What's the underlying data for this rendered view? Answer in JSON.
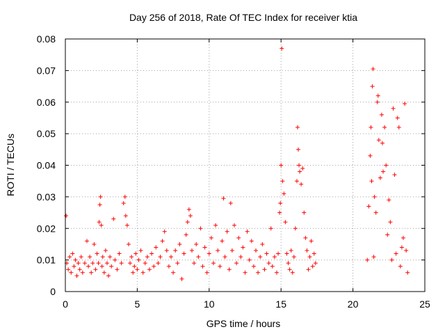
{
  "chart_data": {
    "type": "scatter",
    "title": "Day 256 of 2018, Rate Of TEC Index for receiver ktia",
    "xlabel": "GPS time / hours",
    "ylabel": "ROTI / TECUs",
    "xlim": [
      0,
      25
    ],
    "ylim": [
      0,
      0.08
    ],
    "x_ticks": [
      0,
      5,
      10,
      15,
      20,
      25
    ],
    "y_ticks": [
      0,
      0.01,
      0.02,
      0.03,
      0.04,
      0.05,
      0.06,
      0.07,
      0.08
    ],
    "x_tick_labels": [
      "0",
      "5",
      "10",
      "15",
      "20",
      "25"
    ],
    "y_tick_labels": [
      "0",
      "0.01",
      "0.02",
      "0.03",
      "0.04",
      "0.05",
      "0.06",
      "0.07",
      "0.08"
    ],
    "grid": true,
    "marker": "plus",
    "color": "#ff0000",
    "series": [
      {
        "name": "ROTI",
        "points": [
          [
            0.05,
            0.024
          ],
          [
            0.1,
            0.009
          ],
          [
            0.2,
            0.007
          ],
          [
            0.3,
            0.011
          ],
          [
            0.4,
            0.006
          ],
          [
            0.5,
            0.012
          ],
          [
            0.6,
            0.008
          ],
          [
            0.7,
            0.01
          ],
          [
            0.8,
            0.005
          ],
          [
            0.9,
            0.009
          ],
          [
            1.0,
            0.007
          ],
          [
            1.1,
            0.011
          ],
          [
            1.2,
            0.006
          ],
          [
            1.35,
            0.009
          ],
          [
            1.5,
            0.016
          ],
          [
            1.6,
            0.008
          ],
          [
            1.7,
            0.011
          ],
          [
            1.8,
            0.006
          ],
          [
            1.9,
            0.009
          ],
          [
            2.0,
            0.015
          ],
          [
            2.1,
            0.007
          ],
          [
            2.2,
            0.012
          ],
          [
            2.3,
            0.009
          ],
          [
            2.35,
            0.022
          ],
          [
            2.4,
            0.0275
          ],
          [
            2.45,
            0.03
          ],
          [
            2.5,
            0.021
          ],
          [
            2.55,
            0.008
          ],
          [
            2.6,
            0.011
          ],
          [
            2.7,
            0.006
          ],
          [
            2.8,
            0.013
          ],
          [
            2.9,
            0.009
          ],
          [
            3.0,
            0.005
          ],
          [
            3.1,
            0.011
          ],
          [
            3.2,
            0.008
          ],
          [
            3.35,
            0.023
          ],
          [
            3.45,
            0.01
          ],
          [
            3.6,
            0.007
          ],
          [
            3.75,
            0.012
          ],
          [
            3.9,
            0.009
          ],
          [
            4.05,
            0.028
          ],
          [
            4.15,
            0.03
          ],
          [
            4.2,
            0.024
          ],
          [
            4.3,
            0.021
          ],
          [
            4.4,
            0.015
          ],
          [
            4.5,
            0.009
          ],
          [
            4.6,
            0.011
          ],
          [
            4.7,
            0.006
          ],
          [
            4.8,
            0.008
          ],
          [
            4.9,
            0.012
          ],
          [
            5.0,
            0.007
          ],
          [
            5.1,
            0.01
          ],
          [
            5.25,
            0.013
          ],
          [
            5.4,
            0.006
          ],
          [
            5.55,
            0.009
          ],
          [
            5.7,
            0.011
          ],
          [
            5.85,
            0.007
          ],
          [
            6.0,
            0.012
          ],
          [
            6.15,
            0.008
          ],
          [
            6.3,
            0.014
          ],
          [
            6.45,
            0.009
          ],
          [
            6.6,
            0.011
          ],
          [
            6.75,
            0.016
          ],
          [
            6.9,
            0.019
          ],
          [
            7.05,
            0.013
          ],
          [
            7.2,
            0.008
          ],
          [
            7.35,
            0.011
          ],
          [
            7.5,
            0.006
          ],
          [
            7.65,
            0.013
          ],
          [
            7.8,
            0.009
          ],
          [
            7.95,
            0.015
          ],
          [
            8.1,
            0.004
          ],
          [
            8.25,
            0.012
          ],
          [
            8.4,
            0.018
          ],
          [
            8.5,
            0.022
          ],
          [
            8.6,
            0.026
          ],
          [
            8.7,
            0.024
          ],
          [
            8.8,
            0.013
          ],
          [
            8.95,
            0.009
          ],
          [
            9.1,
            0.015
          ],
          [
            9.25,
            0.011
          ],
          [
            9.4,
            0.02
          ],
          [
            9.55,
            0.008
          ],
          [
            9.7,
            0.014
          ],
          [
            9.85,
            0.006
          ],
          [
            10.0,
            0.012
          ],
          [
            10.15,
            0.017
          ],
          [
            10.3,
            0.009
          ],
          [
            10.45,
            0.021
          ],
          [
            10.6,
            0.013
          ],
          [
            10.75,
            0.008
          ],
          [
            10.9,
            0.016
          ],
          [
            11.0,
            0.0295
          ],
          [
            11.1,
            0.011
          ],
          [
            11.25,
            0.019
          ],
          [
            11.4,
            0.007
          ],
          [
            11.5,
            0.028
          ],
          [
            11.6,
            0.013
          ],
          [
            11.75,
            0.021
          ],
          [
            11.9,
            0.009
          ],
          [
            12.05,
            0.017
          ],
          [
            12.2,
            0.011
          ],
          [
            12.35,
            0.014
          ],
          [
            12.5,
            0.006
          ],
          [
            12.65,
            0.019
          ],
          [
            12.8,
            0.01
          ],
          [
            12.95,
            0.016
          ],
          [
            13.1,
            0.008
          ],
          [
            13.25,
            0.013
          ],
          [
            13.4,
            0.006
          ],
          [
            13.55,
            0.011
          ],
          [
            13.7,
            0.015
          ],
          [
            13.85,
            0.007
          ],
          [
            14.0,
            0.012
          ],
          [
            14.15,
            0.009
          ],
          [
            14.3,
            0.02
          ],
          [
            14.4,
            0.008
          ],
          [
            14.55,
            0.011
          ],
          [
            14.7,
            0.006
          ],
          [
            14.8,
            0.012
          ],
          [
            14.9,
            0.025
          ],
          [
            14.95,
            0.028
          ],
          [
            15.0,
            0.04
          ],
          [
            15.05,
            0.077
          ],
          [
            15.1,
            0.035
          ],
          [
            15.2,
            0.031
          ],
          [
            15.3,
            0.022
          ],
          [
            15.4,
            0.012
          ],
          [
            15.5,
            0.009
          ],
          [
            15.6,
            0.007
          ],
          [
            15.7,
            0.013
          ],
          [
            15.8,
            0.006
          ],
          [
            15.9,
            0.011
          ],
          [
            16.0,
            0.02
          ],
          [
            16.1,
            0.035
          ],
          [
            16.15,
            0.052
          ],
          [
            16.2,
            0.045
          ],
          [
            16.25,
            0.04
          ],
          [
            16.3,
            0.038
          ],
          [
            16.4,
            0.034
          ],
          [
            16.5,
            0.039
          ],
          [
            16.6,
            0.025
          ],
          [
            16.7,
            0.017
          ],
          [
            16.8,
            0.013
          ],
          [
            16.9,
            0.007
          ],
          [
            17.0,
            0.011
          ],
          [
            17.1,
            0.016
          ],
          [
            17.2,
            0.008
          ],
          [
            17.3,
            0.012
          ],
          [
            17.4,
            0.009
          ],
          [
            21.0,
            0.01
          ],
          [
            21.1,
            0.027
          ],
          [
            21.2,
            0.043
          ],
          [
            21.25,
            0.052
          ],
          [
            21.3,
            0.035
          ],
          [
            21.35,
            0.065
          ],
          [
            21.4,
            0.0705
          ],
          [
            21.45,
            0.011
          ],
          [
            21.5,
            0.03
          ],
          [
            21.6,
            0.025
          ],
          [
            21.7,
            0.06
          ],
          [
            21.75,
            0.062
          ],
          [
            21.8,
            0.048
          ],
          [
            21.9,
            0.036
          ],
          [
            22.0,
            0.056
          ],
          [
            22.05,
            0.047
          ],
          [
            22.1,
            0.038
          ],
          [
            22.2,
            0.052
          ],
          [
            22.3,
            0.04
          ],
          [
            22.4,
            0.018
          ],
          [
            22.5,
            0.029
          ],
          [
            22.6,
            0.022
          ],
          [
            22.7,
            0.01
          ],
          [
            22.8,
            0.058
          ],
          [
            22.9,
            0.037
          ],
          [
            23.0,
            0.012
          ],
          [
            23.1,
            0.055
          ],
          [
            23.2,
            0.052
          ],
          [
            23.3,
            0.008
          ],
          [
            23.4,
            0.014
          ],
          [
            23.5,
            0.017
          ],
          [
            23.6,
            0.0595
          ],
          [
            23.7,
            0.013
          ],
          [
            23.8,
            0.006
          ]
        ]
      }
    ]
  }
}
